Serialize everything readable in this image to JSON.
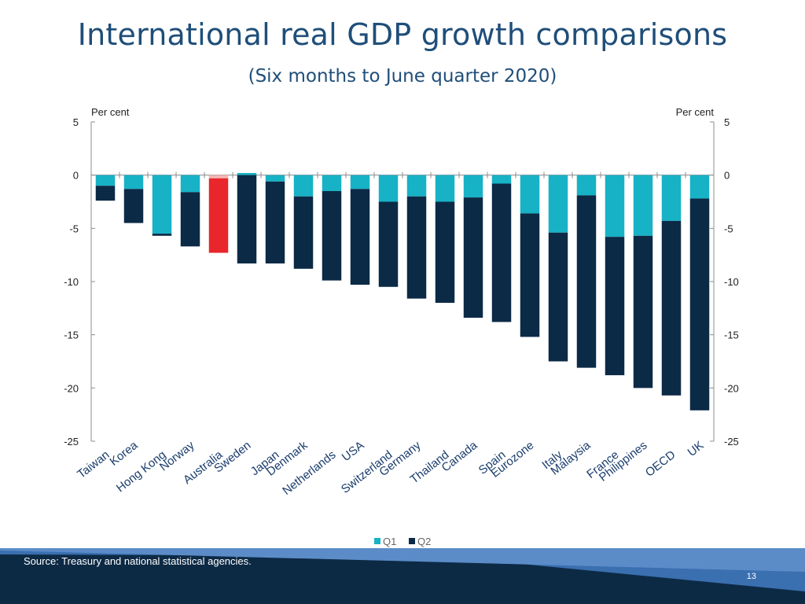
{
  "slide": {
    "title": "International real GDP growth comparisons",
    "subtitle": "(Six months to June quarter 2020)",
    "source": "Source: Treasury and national statistical agencies.",
    "page_number": "13"
  },
  "colors": {
    "q1": "#17b2c6",
    "q2": "#0b2a46",
    "highlight": "#e8262c",
    "highlight_q1": "#f5b5b6",
    "title": "#1f4e79",
    "footer": "#0d2a45",
    "footer_accent": "#3a6fb0"
  },
  "chart_data": {
    "type": "bar",
    "stacked": true,
    "title": "International real GDP growth comparisons",
    "subtitle": "(Six months to June quarter 2020)",
    "ylabel_left": "Per cent",
    "ylabel_right": "Per cent",
    "ylim": [
      -25,
      5
    ],
    "yticks": [
      5,
      0,
      -5,
      -10,
      -15,
      -20,
      -25
    ],
    "ytick_labels": [
      "5",
      "0",
      "-5",
      "-10",
      "-15",
      "-20",
      "-25"
    ],
    "categories": [
      "Taiwan",
      "Korea",
      "Hong Kong",
      "Norway",
      "Australia",
      "Sweden",
      "Japan",
      "Denmark",
      "Netherlands",
      "USA",
      "Switzerland",
      "Germany",
      "Thailand",
      "Canada",
      "Spain",
      "Eurozone",
      "Italy",
      "Malaysia",
      "France",
      "Philippines",
      "OECD",
      "UK"
    ],
    "series": [
      {
        "name": "Q1",
        "values": [
          -1.0,
          -1.3,
          -5.5,
          -1.6,
          -0.3,
          0.2,
          -0.6,
          -2.0,
          -1.5,
          -1.3,
          -2.5,
          -2.0,
          -2.5,
          -2.1,
          -0.8,
          -3.6,
          -5.4,
          -1.9,
          -5.8,
          -5.7,
          -4.3,
          -2.2
        ]
      },
      {
        "name": "Q2",
        "values": [
          -1.4,
          -3.2,
          -0.2,
          -5.1,
          -7.0,
          -8.3,
          -7.7,
          -6.8,
          -8.4,
          -9.0,
          -8.0,
          -9.6,
          -9.5,
          -11.3,
          -13.0,
          -11.6,
          -12.1,
          -16.2,
          -13.0,
          -14.3,
          -16.4,
          -19.9
        ]
      }
    ],
    "highlight_category": "Australia",
    "legend": [
      "Q1",
      "Q2"
    ],
    "legend_position": "bottom"
  }
}
